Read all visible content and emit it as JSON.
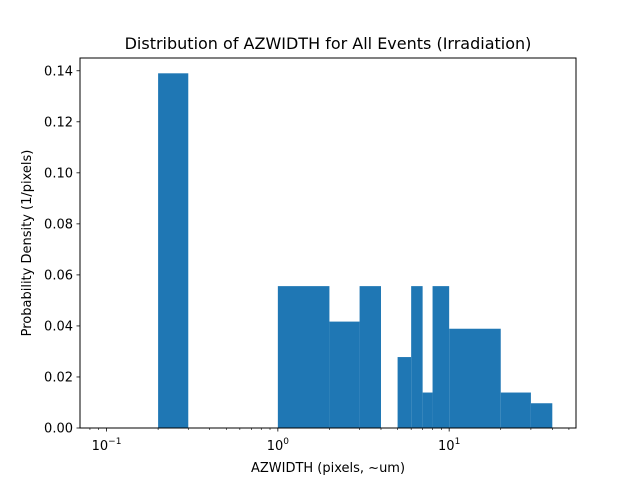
{
  "chart_data": {
    "type": "bar",
    "title": "Distribution of AZWIDTH for All Events (Irradiation)",
    "xlabel": "AZWIDTH (pixels, ~um)",
    "ylabel": "Probability Density (1/pixels)",
    "xscale": "log",
    "xlim": [
      0.07,
      55
    ],
    "ylim": [
      0,
      0.145
    ],
    "x_ticks": [
      {
        "value": 0.1,
        "base": "10",
        "exp": "−1"
      },
      {
        "value": 1,
        "base": "10",
        "exp": "0"
      },
      {
        "value": 10,
        "base": "10",
        "exp": "1"
      }
    ],
    "y_ticks": [
      {
        "value": 0,
        "label": "0.00"
      },
      {
        "value": 0.02,
        "label": "0.02"
      },
      {
        "value": 0.04,
        "label": "0.04"
      },
      {
        "value": 0.06,
        "label": "0.06"
      },
      {
        "value": 0.08,
        "label": "0.08"
      },
      {
        "value": 0.1,
        "label": "0.10"
      },
      {
        "value": 0.12,
        "label": "0.12"
      },
      {
        "value": 0.14,
        "label": "0.14"
      }
    ],
    "grid": false,
    "color": "#1f77b4",
    "bins": [
      {
        "x0": 0.2,
        "x1": 0.3,
        "value": 0.139
      },
      {
        "x0": 1.0,
        "x1": 2.0,
        "value": 0.0556
      },
      {
        "x0": 2.0,
        "x1": 3.0,
        "value": 0.0417
      },
      {
        "x0": 3.0,
        "x1": 4.0,
        "value": 0.0556
      },
      {
        "x0": 5.0,
        "x1": 6.0,
        "value": 0.0278
      },
      {
        "x0": 6.0,
        "x1": 7.0,
        "value": 0.0556
      },
      {
        "x0": 7.0,
        "x1": 8.0,
        "value": 0.0139
      },
      {
        "x0": 8.0,
        "x1": 10.0,
        "value": 0.0556
      },
      {
        "x0": 10.0,
        "x1": 20.0,
        "value": 0.0389
      },
      {
        "x0": 20.0,
        "x1": 30.0,
        "value": 0.0139
      },
      {
        "x0": 30.0,
        "x1": 40.0,
        "value": 0.0097
      }
    ]
  }
}
